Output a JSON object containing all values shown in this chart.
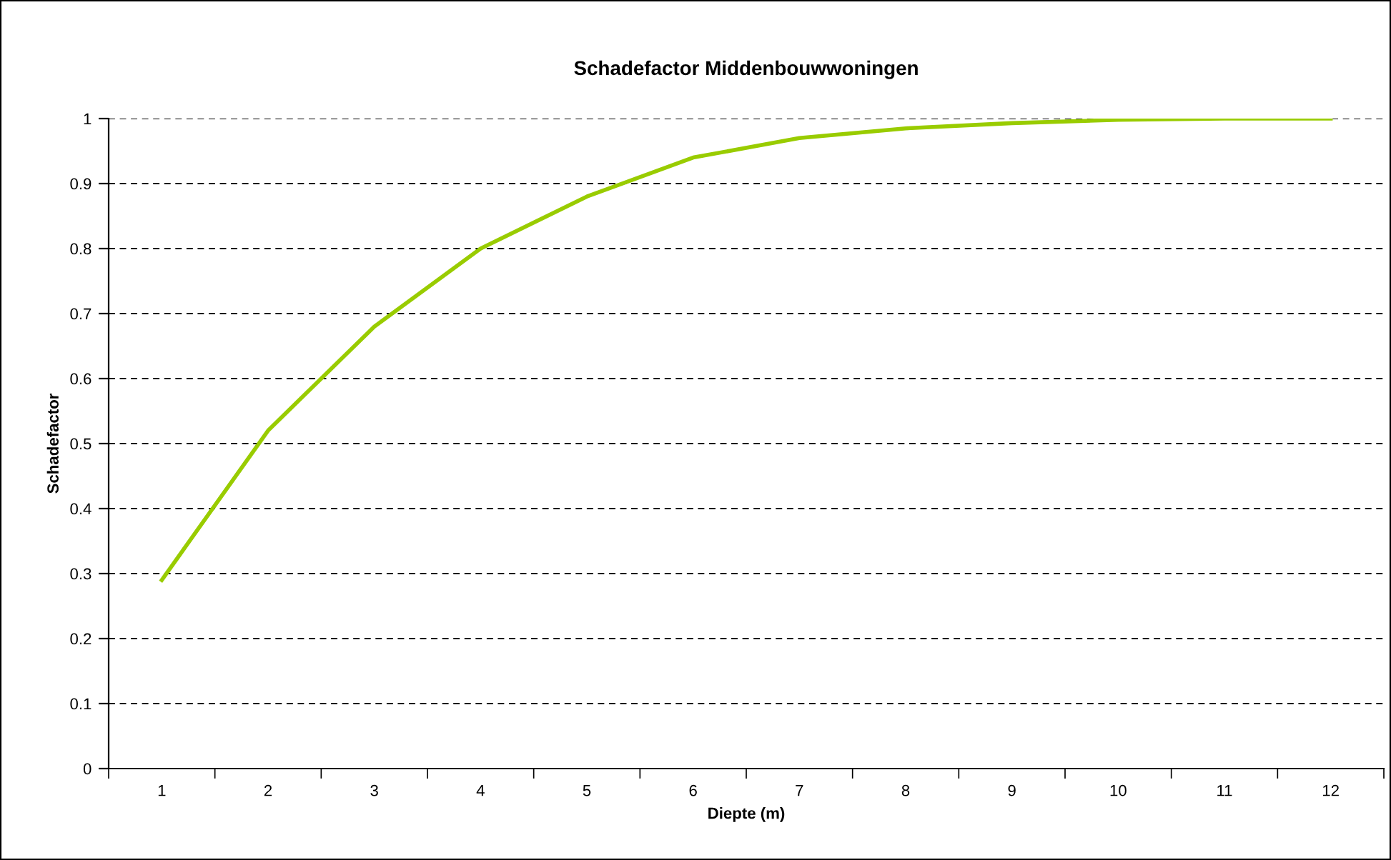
{
  "chart_data": {
    "type": "line",
    "title": "Schadefactor Middenbouwwoningen",
    "xlabel": "Diepte (m)",
    "ylabel": "Schadefactor",
    "categories": [
      "1",
      "2",
      "3",
      "4",
      "5",
      "6",
      "7",
      "8",
      "9",
      "10",
      "11",
      "12"
    ],
    "series": [
      {
        "color": "#99cc00",
        "values": [
          0.29,
          0.52,
          0.68,
          0.8,
          0.88,
          0.94,
          0.97,
          0.985,
          0.993,
          0.998,
          1.0,
          1.0
        ]
      }
    ],
    "ylim": [
      0,
      1
    ],
    "yticks": [
      0,
      0.1,
      0.2,
      0.3,
      0.4,
      0.5,
      0.6,
      0.7,
      0.8,
      0.9,
      1
    ],
    "grid": "y",
    "line_style": "solid",
    "marker": "none",
    "legend": false
  }
}
